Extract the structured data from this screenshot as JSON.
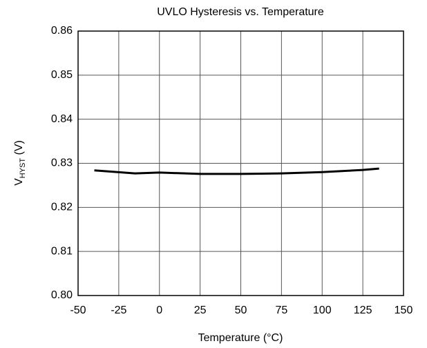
{
  "chart_data": {
    "type": "line",
    "title": "UVLO Hysteresis vs. Temperature",
    "xlabel": "Temperature (°C)",
    "ylabel": [
      "V",
      "HYST",
      " (V)"
    ],
    "x": [
      -40,
      -15,
      0,
      25,
      50,
      75,
      100,
      125,
      135
    ],
    "series": [
      {
        "color": "#000000",
        "values": [
          0.8284,
          0.8277,
          0.8279,
          0.8276,
          0.8276,
          0.8277,
          0.828,
          0.8285,
          0.8288
        ]
      }
    ],
    "xlim": [
      -50,
      150
    ],
    "xticks": [
      -50,
      -25,
      0,
      25,
      50,
      75,
      100,
      125,
      150
    ],
    "ylim": [
      0.8,
      0.86
    ],
    "yticks": [
      {
        "value": 0.8,
        "label": "0.80"
      },
      0.81,
      0.82,
      0.83,
      0.84,
      0.85,
      0.86
    ],
    "grid": true
  }
}
